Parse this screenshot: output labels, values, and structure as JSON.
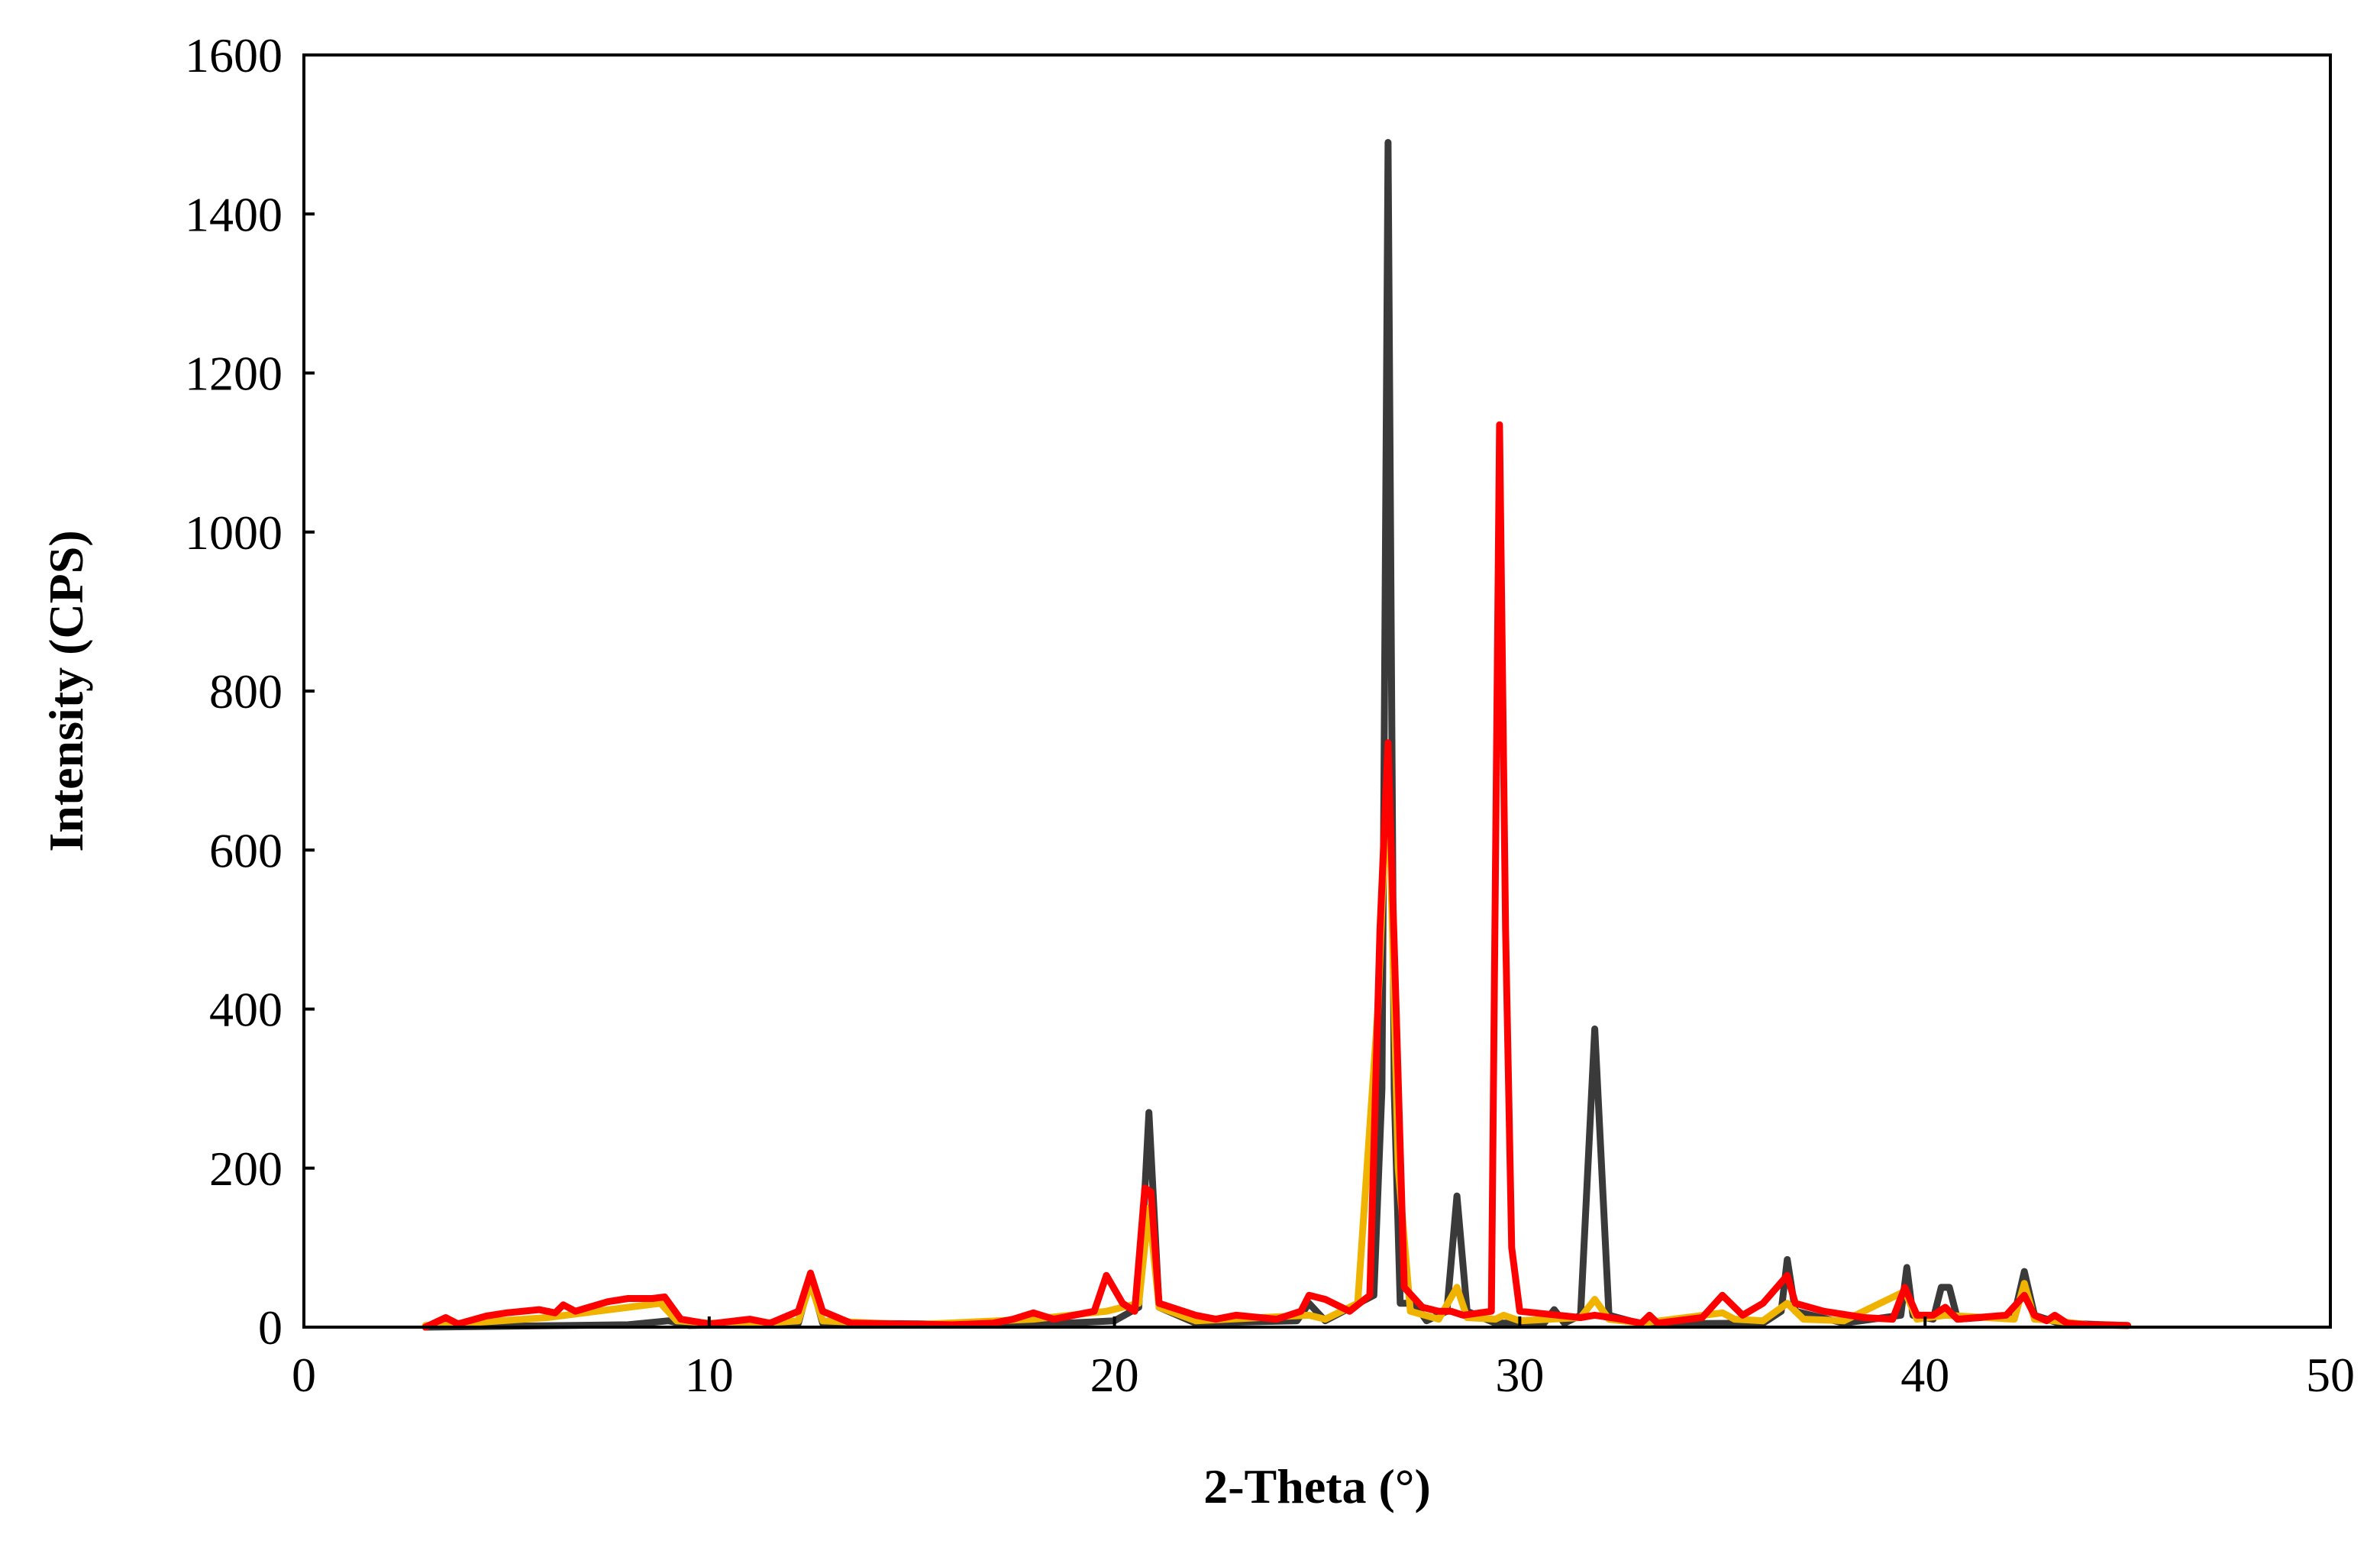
{
  "chart_data": {
    "type": "line",
    "title": "",
    "xlabel": "2-Theta (°)",
    "ylabel": "Intensity (CPS)",
    "xlim": [
      0,
      50
    ],
    "ylim": [
      0,
      1600
    ],
    "xticks": [
      0,
      10,
      20,
      30,
      40,
      50
    ],
    "yticks": [
      0,
      200,
      400,
      600,
      800,
      1000,
      1200,
      1400,
      1600
    ],
    "grid": false,
    "legend": "none",
    "series": [
      {
        "color": "#3a3a3a",
        "points": [
          [
            3,
            0
          ],
          [
            8,
            3
          ],
          [
            9,
            8
          ],
          [
            9.5,
            2
          ],
          [
            12.2,
            5
          ],
          [
            12.5,
            60
          ],
          [
            12.8,
            5
          ],
          [
            18,
            3
          ],
          [
            20,
            8
          ],
          [
            20.6,
            25
          ],
          [
            20.85,
            270
          ],
          [
            21.1,
            25
          ],
          [
            22,
            5
          ],
          [
            24.5,
            8
          ],
          [
            24.8,
            30
          ],
          [
            25.2,
            8
          ],
          [
            26.4,
            40
          ],
          [
            26.6,
            300
          ],
          [
            26.75,
            1490
          ],
          [
            26.9,
            300
          ],
          [
            27.05,
            30
          ],
          [
            27.4,
            30
          ],
          [
            27.7,
            8
          ],
          [
            28.2,
            20
          ],
          [
            28.45,
            165
          ],
          [
            28.7,
            20
          ],
          [
            29.4,
            5
          ],
          [
            30.6,
            5
          ],
          [
            30.85,
            22
          ],
          [
            31.1,
            5
          ],
          [
            31.5,
            15
          ],
          [
            31.85,
            375
          ],
          [
            32.2,
            15
          ],
          [
            33,
            4
          ],
          [
            36,
            5
          ],
          [
            36.45,
            20
          ],
          [
            36.6,
            85
          ],
          [
            36.8,
            20
          ],
          [
            38,
            5
          ],
          [
            39.4,
            15
          ],
          [
            39.55,
            75
          ],
          [
            39.7,
            15
          ],
          [
            40.2,
            10
          ],
          [
            40.4,
            50
          ],
          [
            40.6,
            50
          ],
          [
            40.8,
            10
          ],
          [
            42.2,
            15
          ],
          [
            42.45,
            70
          ],
          [
            42.7,
            15
          ],
          [
            43.3,
            5
          ],
          [
            45,
            2
          ]
        ]
      },
      {
        "color": "#f0b400",
        "points": [
          [
            3,
            2
          ],
          [
            4,
            5
          ],
          [
            6,
            12
          ],
          [
            8,
            25
          ],
          [
            8.8,
            30
          ],
          [
            9.2,
            8
          ],
          [
            10,
            5
          ],
          [
            11,
            4
          ],
          [
            12.2,
            8
          ],
          [
            12.5,
            55
          ],
          [
            12.8,
            8
          ],
          [
            15,
            3
          ],
          [
            18,
            10
          ],
          [
            19.8,
            20
          ],
          [
            20.6,
            30
          ],
          [
            20.85,
            150
          ],
          [
            21.1,
            25
          ],
          [
            22,
            8
          ],
          [
            24.8,
            15
          ],
          [
            25.2,
            10
          ],
          [
            26,
            30
          ],
          [
            26.5,
            400
          ],
          [
            26.75,
            720
          ],
          [
            27,
            200
          ],
          [
            27.3,
            20
          ],
          [
            28,
            10
          ],
          [
            28.45,
            50
          ],
          [
            28.7,
            12
          ],
          [
            29.4,
            10
          ],
          [
            29.6,
            15
          ],
          [
            30,
            8
          ],
          [
            31.5,
            12
          ],
          [
            31.85,
            35
          ],
          [
            32.2,
            10
          ],
          [
            33,
            5
          ],
          [
            35,
            18
          ],
          [
            35.3,
            10
          ],
          [
            36,
            8
          ],
          [
            36.6,
            30
          ],
          [
            37,
            10
          ],
          [
            38,
            8
          ],
          [
            39.5,
            45
          ],
          [
            39.8,
            10
          ],
          [
            40.5,
            15
          ],
          [
            42.2,
            10
          ],
          [
            42.45,
            55
          ],
          [
            42.7,
            10
          ],
          [
            43.2,
            8
          ],
          [
            44,
            3
          ],
          [
            45,
            2
          ]
        ]
      },
      {
        "color": "#ff0000",
        "points": [
          [
            3,
            0
          ],
          [
            3.5,
            12
          ],
          [
            3.8,
            4
          ],
          [
            4.5,
            14
          ],
          [
            5,
            18
          ],
          [
            5.8,
            22
          ],
          [
            6.2,
            18
          ],
          [
            6.4,
            28
          ],
          [
            6.7,
            20
          ],
          [
            7.5,
            32
          ],
          [
            8,
            36
          ],
          [
            8.6,
            36
          ],
          [
            8.9,
            38
          ],
          [
            9.3,
            10
          ],
          [
            10,
            4
          ],
          [
            11,
            10
          ],
          [
            11.5,
            5
          ],
          [
            12.2,
            20
          ],
          [
            12.5,
            68
          ],
          [
            12.8,
            20
          ],
          [
            13.5,
            5
          ],
          [
            16,
            3
          ],
          [
            17,
            5
          ],
          [
            17.5,
            10
          ],
          [
            18,
            18
          ],
          [
            18.5,
            10
          ],
          [
            19.5,
            20
          ],
          [
            19.8,
            65
          ],
          [
            20.2,
            30
          ],
          [
            20.5,
            20
          ],
          [
            20.75,
            175
          ],
          [
            20.9,
            170
          ],
          [
            21.1,
            30
          ],
          [
            22,
            15
          ],
          [
            22.5,
            10
          ],
          [
            23,
            15
          ],
          [
            24,
            10
          ],
          [
            24.6,
            20
          ],
          [
            24.8,
            40
          ],
          [
            25.2,
            35
          ],
          [
            25.8,
            20
          ],
          [
            26.3,
            40
          ],
          [
            26.55,
            500
          ],
          [
            26.75,
            735
          ],
          [
            26.95,
            400
          ],
          [
            27.15,
            50
          ],
          [
            27.6,
            25
          ],
          [
            28,
            20
          ],
          [
            28.3,
            20
          ],
          [
            28.6,
            15
          ],
          [
            29.3,
            20
          ],
          [
            29.5,
            1135
          ],
          [
            29.65,
            500
          ],
          [
            29.8,
            100
          ],
          [
            30,
            20
          ],
          [
            31.5,
            12
          ],
          [
            31.85,
            15
          ],
          [
            32.5,
            10
          ],
          [
            33,
            5
          ],
          [
            33.2,
            15
          ],
          [
            33.4,
            5
          ],
          [
            34.5,
            12
          ],
          [
            35,
            40
          ],
          [
            35.5,
            15
          ],
          [
            36,
            30
          ],
          [
            36.6,
            65
          ],
          [
            36.8,
            30
          ],
          [
            37.5,
            20
          ],
          [
            38.5,
            12
          ],
          [
            39.2,
            10
          ],
          [
            39.5,
            50
          ],
          [
            39.8,
            15
          ],
          [
            40.2,
            15
          ],
          [
            40.5,
            25
          ],
          [
            40.8,
            10
          ],
          [
            42,
            15
          ],
          [
            42.45,
            40
          ],
          [
            42.7,
            15
          ],
          [
            43,
            8
          ],
          [
            43.2,
            15
          ],
          [
            43.5,
            5
          ],
          [
            44,
            3
          ],
          [
            45,
            2
          ]
        ]
      }
    ]
  }
}
